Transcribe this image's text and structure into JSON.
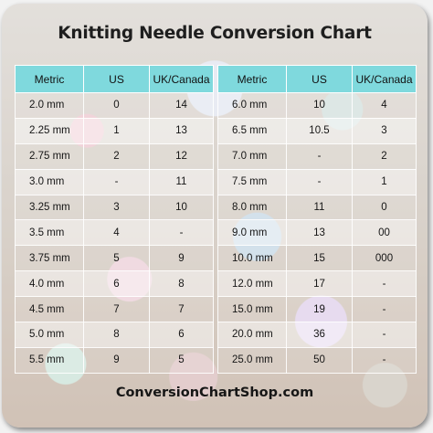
{
  "title": "Knitting Needle Conversion Chart",
  "footer": "ConversionChartShop.com",
  "headers": [
    "Metric",
    "US",
    "UK/Canada"
  ],
  "accent_color": "#7fd9dd",
  "left_rows": [
    [
      "2.0 mm",
      "0",
      "14"
    ],
    [
      "2.25 mm",
      "1",
      "13"
    ],
    [
      "2.75 mm",
      "2",
      "12"
    ],
    [
      "3.0 mm",
      "-",
      "11"
    ],
    [
      "3.25 mm",
      "3",
      "10"
    ],
    [
      "3.5 mm",
      "4",
      "-"
    ],
    [
      "3.75 mm",
      "5",
      "9"
    ],
    [
      "4.0 mm",
      "6",
      "8"
    ],
    [
      "4.5 mm",
      "7",
      "7"
    ],
    [
      "5.0 mm",
      "8",
      "6"
    ],
    [
      "5.5 mm",
      "9",
      "5"
    ]
  ],
  "right_rows": [
    [
      "6.0 mm",
      "10",
      "4"
    ],
    [
      "6.5 mm",
      "10.5",
      "3"
    ],
    [
      "7.0 mm",
      "-",
      "2"
    ],
    [
      "7.5 mm",
      "-",
      "1"
    ],
    [
      "8.0 mm",
      "11",
      "0"
    ],
    [
      "9.0 mm",
      "13",
      "00"
    ],
    [
      "10.0 mm",
      "15",
      "000"
    ],
    [
      "12.0 mm",
      "17",
      "-"
    ],
    [
      "15.0 mm",
      "19",
      "-"
    ],
    [
      "20.0 mm",
      "36",
      "-"
    ],
    [
      "25.0 mm",
      "50",
      "-"
    ]
  ]
}
